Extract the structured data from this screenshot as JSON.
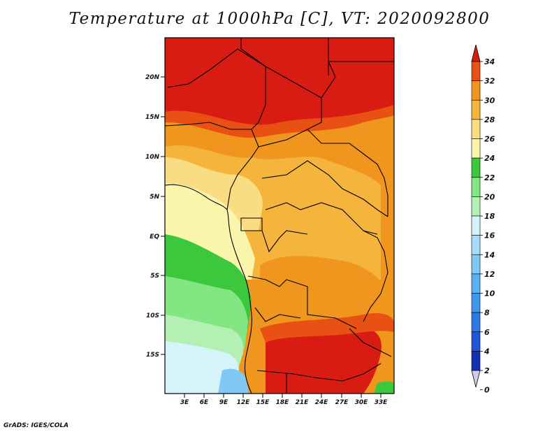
{
  "title": "Temperature at 1000hPa [C], VT: 2020092800",
  "footer": "GrADS: IGES/COLA",
  "map": {
    "lat_labels": [
      "20N",
      "15N",
      "10N",
      "5N",
      "EQ",
      "5S",
      "10S",
      "15S"
    ],
    "lon_labels": [
      "3E",
      "6E",
      "9E",
      "12E",
      "15E",
      "18E",
      "21E",
      "24E",
      "27E",
      "30E",
      "33E"
    ]
  },
  "colorbar": {
    "levels": [
      "0",
      "2",
      "4",
      "6",
      "8",
      "10",
      "12",
      "14",
      "16",
      "18",
      "20",
      "22",
      "24",
      "26",
      "28",
      "30",
      "32",
      "34"
    ],
    "colors": [
      "#101070",
      "#1530b4",
      "#1f55d8",
      "#2c78e6",
      "#3f96ee",
      "#5ab0f0",
      "#80c8f6",
      "#a8dcf8",
      "#d4f4fa",
      "#b4f0b4",
      "#82e682",
      "#3cc83c",
      "#faf5aa",
      "#fadc82",
      "#f5b43c",
      "#f0961e",
      "#e85014",
      "#d81c14"
    ]
  },
  "colors": {
    "hot": "#d81c14",
    "warm": "#e85014",
    "orange": "#f0961e",
    "light_orange": "#f5b43c",
    "yellow": "#fadc82",
    "pale_yellow": "#faf5aa",
    "green": "#3cc83c",
    "light_green": "#82e682",
    "pale_green": "#b4f0b4",
    "cyan": "#d4f4fa",
    "blue": "#80c8f6"
  }
}
